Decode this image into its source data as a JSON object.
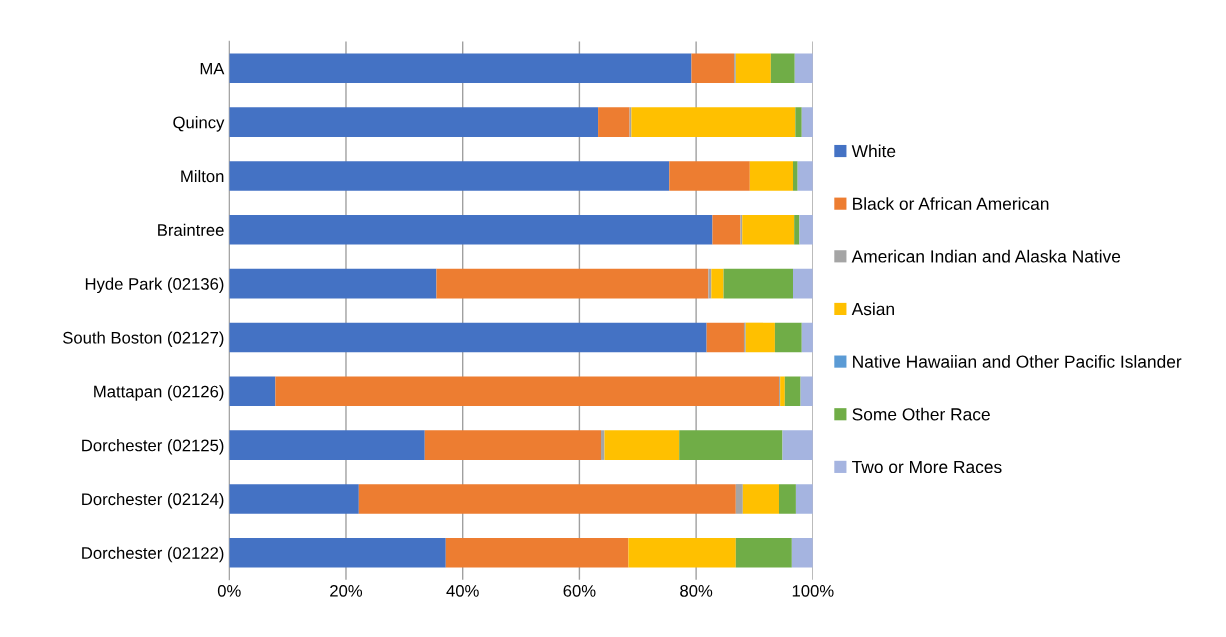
{
  "chart_data": {
    "type": "bar",
    "orientation": "horizontal",
    "stacked": true,
    "categories": [
      "MA",
      "Quincy",
      "Milton",
      "Braintree",
      "Hyde Park (02136)",
      "South Boston (02127)",
      "Mattapan (02126)",
      "Dorchester (02125)",
      "Dorchester (02124)",
      "Dorchester (02122)"
    ],
    "series": [
      {
        "name": "White",
        "color": "#4472c4",
        "values": [
          79.2,
          63.2,
          75.4,
          82.8,
          35.5,
          81.8,
          7.9,
          33.5,
          22.2,
          37.1
        ]
      },
      {
        "name": "Black or African American",
        "color": "#ed7d31",
        "values": [
          7.3,
          5.4,
          13.8,
          4.8,
          46.6,
          6.4,
          86.3,
          30.2,
          64.6,
          31.3
        ]
      },
      {
        "name": "American Indian and Alaska Native",
        "color": "#a5a5a5",
        "values": [
          0.3,
          0.3,
          0,
          0.3,
          0.5,
          0.3,
          0.2,
          0.6,
          1.2,
          0
        ]
      },
      {
        "name": "Asian",
        "color": "#ffc000",
        "values": [
          6.0,
          28.1,
          7.4,
          8.9,
          2.1,
          5.0,
          0.8,
          12.8,
          6.2,
          18.4
        ]
      },
      {
        "name": "Native Hawaiian and Other Pacific Islander",
        "color": "#5b9bd5",
        "values": [
          0,
          0,
          0,
          0,
          0,
          0,
          0,
          0,
          0,
          0
        ]
      },
      {
        "name": "Some Other Race",
        "color": "#70ad47",
        "values": [
          4.1,
          1.1,
          0.8,
          0.9,
          11.9,
          4.6,
          2.7,
          17.7,
          2.9,
          9.6
        ]
      },
      {
        "name": "Two or More Races",
        "color": "#a5b4e0",
        "values": [
          3.1,
          2.2,
          2.6,
          2.4,
          3.4,
          2.1,
          2.1,
          5.2,
          2.9,
          3.6
        ]
      }
    ],
    "xlim": [
      0,
      100
    ],
    "xticks": [
      {
        "value": 0,
        "label": "0%"
      },
      {
        "value": 20,
        "label": "20%"
      },
      {
        "value": 40,
        "label": "40%"
      },
      {
        "value": 60,
        "label": "60%"
      },
      {
        "value": 80,
        "label": "80%"
      },
      {
        "value": 100,
        "label": "100%"
      }
    ],
    "grid": "x",
    "legend": "right"
  }
}
